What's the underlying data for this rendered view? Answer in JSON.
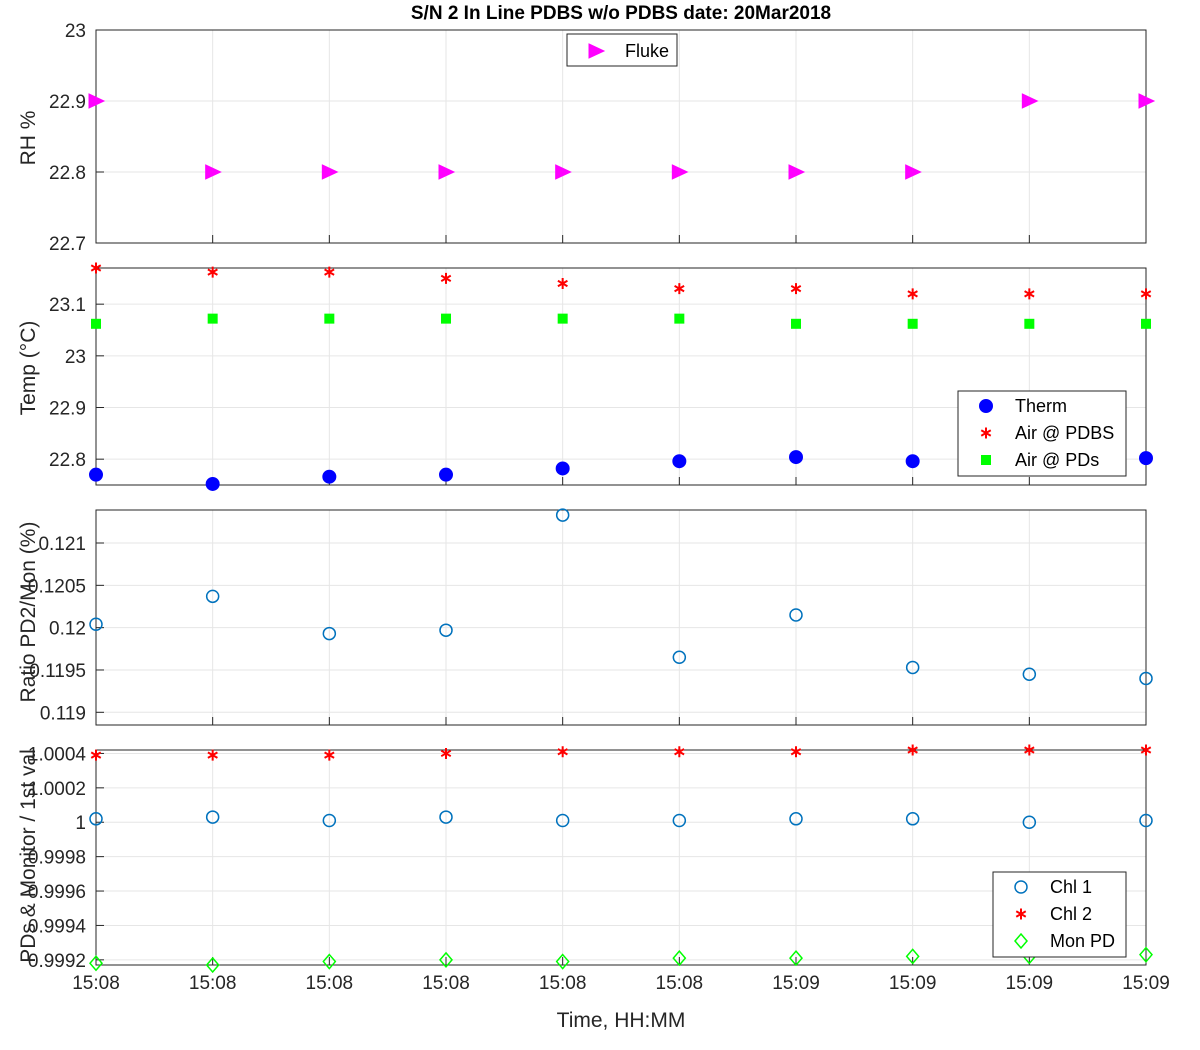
{
  "chart_data": [
    {
      "type": "scatter",
      "title": "S/N 2 In Line PDBS w/o PDBS date: 20Mar2018",
      "ylabel": "RH %",
      "ylim": [
        22.7,
        23.0
      ],
      "yticks": [
        "22.7",
        "22.8",
        "22.9",
        "23"
      ],
      "grid": true,
      "legend_position": "top-center",
      "series": [
        {
          "name": "Fluke",
          "marker": "triangle-right",
          "color": "#ff00ff",
          "values": [
            22.9,
            22.8,
            22.8,
            22.8,
            22.8,
            22.8,
            22.8,
            22.8,
            22.9,
            22.9
          ]
        }
      ]
    },
    {
      "type": "scatter",
      "ylabel": "Temp (°C)",
      "ylim": [
        22.75,
        23.17
      ],
      "yticks": [
        "22.8",
        "22.9",
        "23",
        "23.1"
      ],
      "grid": true,
      "legend_position": "bottom-right",
      "series": [
        {
          "name": "Therm",
          "marker": "filled-circle",
          "color": "#0000ff",
          "values": [
            22.77,
            22.752,
            22.766,
            22.77,
            22.782,
            22.796,
            22.804,
            22.796,
            22.8,
            22.802
          ]
        },
        {
          "name": "Air @ PDBS",
          "marker": "asterisk",
          "color": "#ff0000",
          "values": [
            23.17,
            23.162,
            23.162,
            23.15,
            23.14,
            23.13,
            23.13,
            23.12,
            23.12,
            23.12
          ]
        },
        {
          "name": "Air @ PDs",
          "marker": "filled-square",
          "color": "#00ff00",
          "values": [
            23.062,
            23.072,
            23.072,
            23.072,
            23.072,
            23.072,
            23.062,
            23.062,
            23.062,
            23.062
          ]
        }
      ]
    },
    {
      "type": "scatter",
      "ylabel": "Ratio PD2/Mon (%)",
      "ylim": [
        0.11885,
        0.12139
      ],
      "yticks": [
        "0.119",
        "0.1195",
        "0.12",
        "0.1205",
        "0.121"
      ],
      "grid": true,
      "series": [
        {
          "marker": "open-circle",
          "color": "#0072bd",
          "values": [
            0.12004,
            0.12037,
            0.11993,
            0.11997,
            0.12133,
            0.11965,
            0.12015,
            0.11953,
            0.11945,
            0.1194
          ]
        }
      ]
    },
    {
      "type": "scatter",
      "ylabel": "PDs & Monitor / 1st val",
      "ylim": [
        0.99917,
        1.00042
      ],
      "yticks": [
        "0.9992",
        "0.9994",
        "0.9996",
        "0.9998",
        "1",
        "1.0002",
        "1.0004"
      ],
      "xlabel": "Time, HH:MM",
      "xticks": [
        "15:08",
        "15:08",
        "15:08",
        "15:08",
        "15:08",
        "15:08",
        "15:09",
        "15:09",
        "15:09",
        "15:09"
      ],
      "grid": true,
      "legend_position": "bottom-right",
      "series": [
        {
          "name": "Chl 1",
          "marker": "open-circle",
          "color": "#0072bd",
          "values": [
            1.00002,
            1.00003,
            1.00001,
            1.00003,
            1.00001,
            1.00001,
            1.00002,
            1.00002,
            1.0,
            1.00001
          ]
        },
        {
          "name": "Chl 2",
          "marker": "asterisk",
          "color": "#ff0000",
          "values": [
            1.00039,
            1.00039,
            1.00039,
            1.0004,
            1.00041,
            1.00041,
            1.00041,
            1.00042,
            1.00042,
            1.00042
          ]
        },
        {
          "name": "Mon PD",
          "marker": "open-diamond",
          "color": "#00ff00",
          "values": [
            0.99918,
            0.99917,
            0.99919,
            0.9992,
            0.99919,
            0.99921,
            0.99921,
            0.99922,
            0.99922,
            0.99923
          ]
        }
      ]
    }
  ]
}
